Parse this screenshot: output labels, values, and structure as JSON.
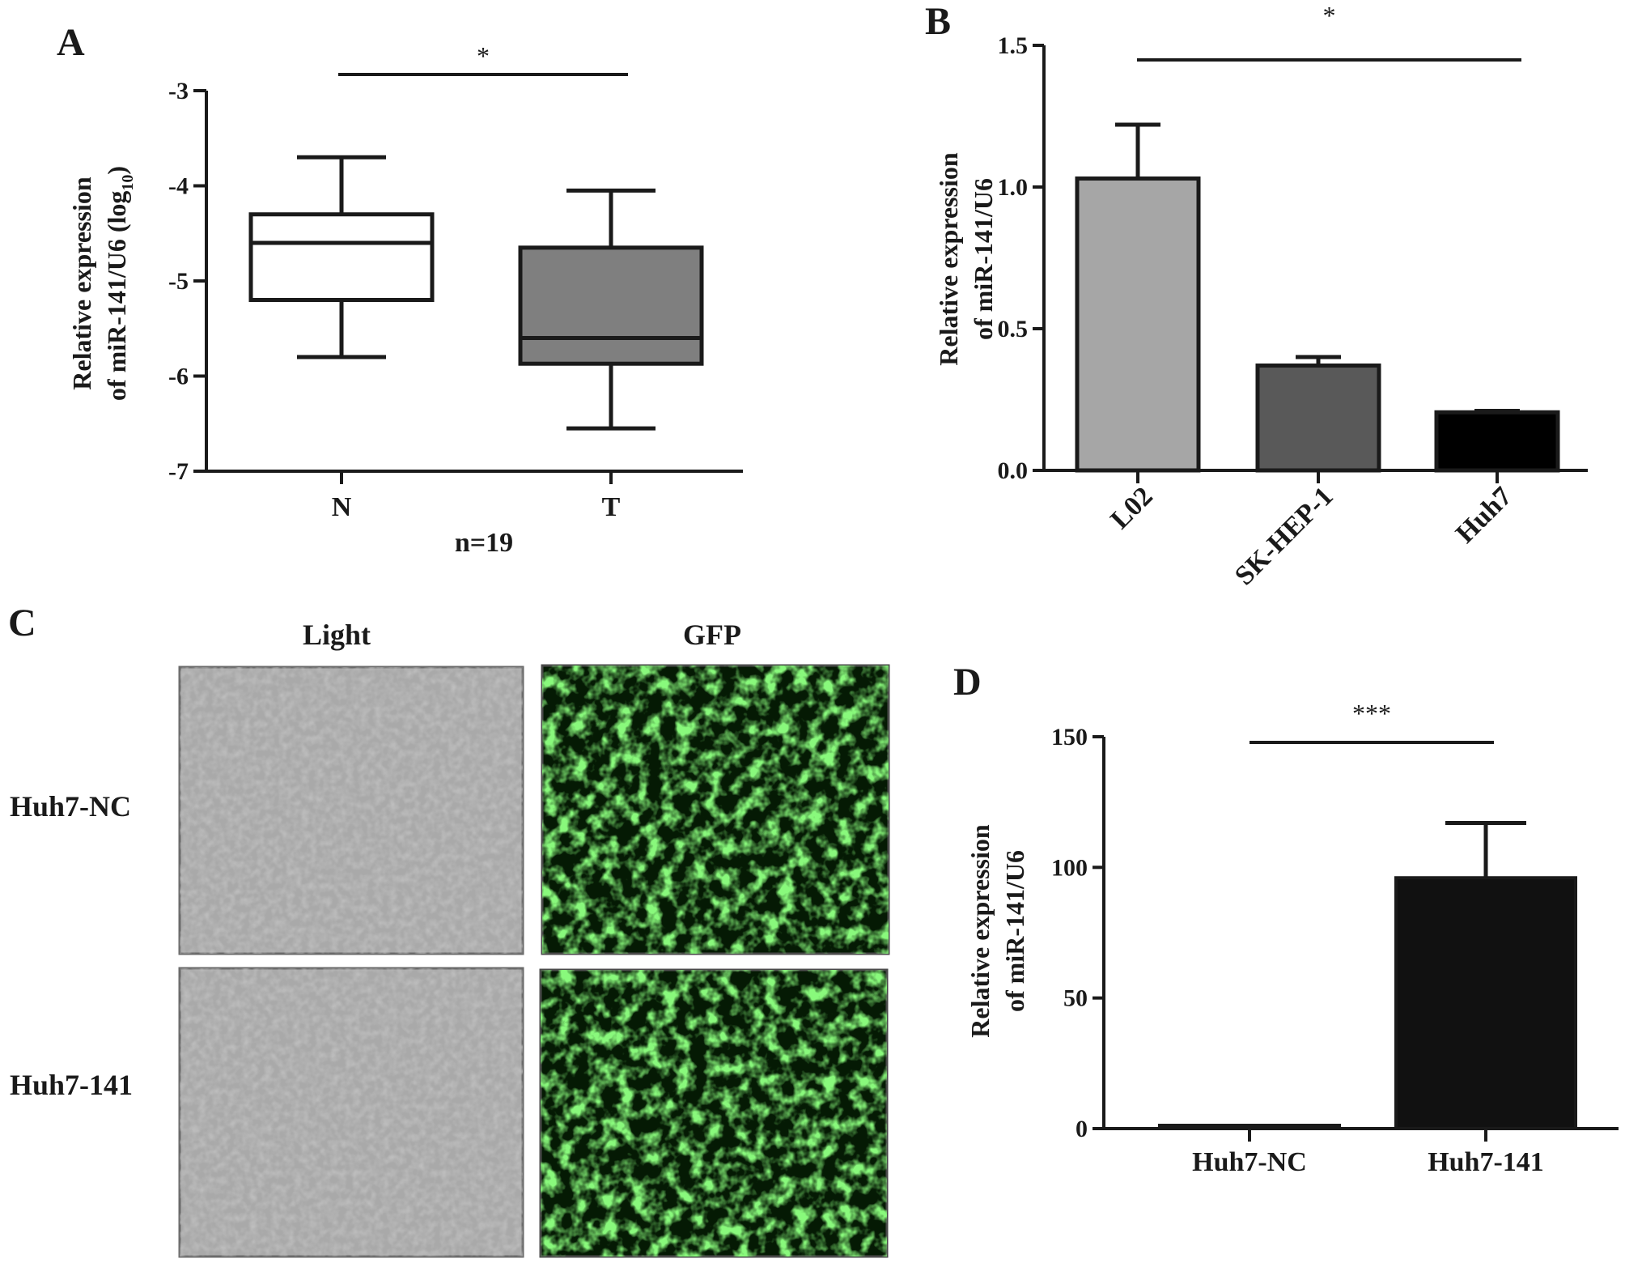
{
  "chart_data": [
    {
      "panel": "A",
      "type": "box",
      "categories": [
        "N",
        "T"
      ],
      "boxes": [
        {
          "category": "N",
          "whisker_low": -5.8,
          "q1": -5.2,
          "median": -4.6,
          "q3": -4.3,
          "whisker_high": -3.7
        },
        {
          "category": "T",
          "whisker_low": -6.55,
          "q1": -5.87,
          "median": -5.6,
          "q3": -4.65,
          "whisker_high": -4.05
        }
      ],
      "colors": {
        "N": "#ffffff",
        "T": "#7f7f7f"
      },
      "ylim": [
        -7,
        -3
      ],
      "yticks": [
        -3,
        -4,
        -5,
        -6,
        -7
      ],
      "ytick_labels": [
        "-3",
        "-4",
        "-5",
        "-6",
        "-7"
      ],
      "ylabel_line1": "Relative expression",
      "ylabel_line2_pre": "of miR-141/U6 (log",
      "ylabel_line2_sub": "10",
      "ylabel_line2_post": ")",
      "xnote": "n=19",
      "significance": {
        "from": "N",
        "to": "T",
        "label": "*"
      }
    },
    {
      "panel": "B",
      "type": "bar",
      "categories": [
        "L02",
        "SK-HEP-1",
        "Huh7"
      ],
      "values": [
        1.03,
        0.37,
        0.205
      ],
      "errors": [
        0.19,
        0.03,
        0.005
      ],
      "colors": [
        "#a6a6a6",
        "#595959",
        "#000000"
      ],
      "ylim": [
        0,
        1.5
      ],
      "yticks": [
        0,
        0.5,
        1.0,
        1.5
      ],
      "ytick_labels": [
        "0.0",
        "0.5",
        "1.0",
        "1.5"
      ],
      "ylabel_line1": "Relative expression",
      "ylabel_line2": "of miR-141/U6",
      "significance": {
        "from": "L02",
        "to": "Huh7",
        "label": "*"
      }
    },
    {
      "panel": "D",
      "type": "bar",
      "categories": [
        "Huh7-NC",
        "Huh7-141"
      ],
      "values": [
        1,
        96
      ],
      "errors": [
        0,
        21
      ],
      "colors": [
        "#111111",
        "#111111"
      ],
      "ylim": [
        0,
        150
      ],
      "yticks": [
        0,
        50,
        100,
        150
      ],
      "ytick_labels": [
        "0",
        "50",
        "100",
        "150"
      ],
      "ylabel_line1": "Relative expression",
      "ylabel_line2": "of miR-141/U6",
      "significance": {
        "from": "Huh7-NC",
        "to": "Huh7-141",
        "label": "***"
      }
    }
  ],
  "panels": {
    "a": "A",
    "b": "B",
    "c": "C",
    "d": "D"
  },
  "panel_c": {
    "column_headers": [
      "Light",
      "GFP"
    ],
    "row_labels": [
      "Huh7-NC",
      "Huh7-141"
    ]
  }
}
